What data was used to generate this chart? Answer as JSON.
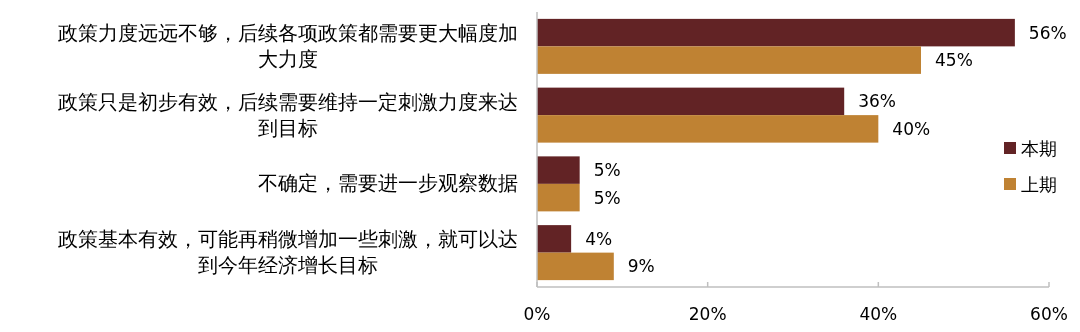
{
  "chart_data": {
    "type": "bar",
    "orientation": "horizontal",
    "categories": [
      "政策力度远远不够，后续各项政策都需要更大幅度加大力度",
      "政策只是初步有效，后续需要维持一定刺激力度来达到目标",
      "不确定，需要进一步观察数据",
      "政策基本有效，可能再稍微增加一些刺激，就可以达到今年经济增长目标"
    ],
    "series": [
      {
        "name": "本期",
        "color": "#622325",
        "values": [
          56,
          36,
          5,
          4
        ],
        "value_labels": [
          "56%",
          "36%",
          "5%",
          "4%"
        ]
      },
      {
        "name": "上期",
        "color": "#bf8233",
        "values": [
          45,
          40,
          5,
          9
        ],
        "value_labels": [
          "45%",
          "40%",
          "5%",
          "9%"
        ]
      }
    ],
    "xlim": [
      0,
      60
    ],
    "xticks": [
      {
        "value": 0,
        "label": "0%"
      },
      {
        "value": 20,
        "label": "20%"
      },
      {
        "value": 40,
        "label": "40%"
      },
      {
        "value": 60,
        "label": "60%"
      }
    ],
    "legend": "right",
    "grid": false
  }
}
